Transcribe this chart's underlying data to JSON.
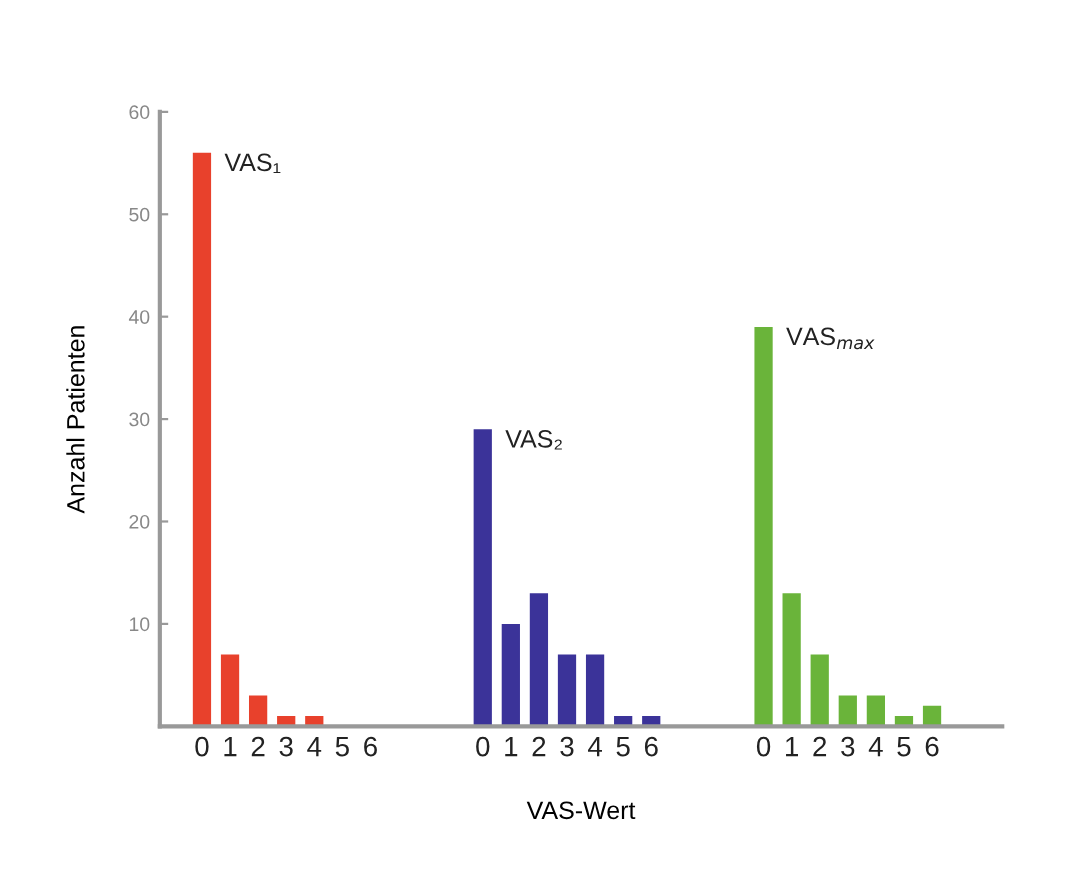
{
  "chart_data": {
    "type": "bar",
    "xlabel": "VAS-Wert",
    "ylabel": "Anzahl Patienten",
    "categories": [
      "0",
      "1",
      "2",
      "3",
      "4",
      "5",
      "6",
      null,
      null,
      null,
      "0",
      "1",
      "2",
      "3",
      "4",
      "5",
      "6",
      null,
      null,
      null,
      "0",
      "1",
      "2",
      "3",
      "4",
      "5",
      "6"
    ],
    "series": [
      {
        "name": "VAS₁",
        "color": "#e8412c",
        "values": [
          56,
          7,
          3,
          1,
          1,
          0,
          0,
          null,
          null,
          null,
          null,
          null,
          null,
          null,
          null,
          null,
          null,
          null,
          null,
          null,
          null,
          null,
          null,
          null,
          null,
          null,
          null
        ]
      },
      {
        "name": "VAS₂",
        "color": "#3b3399",
        "values": [
          null,
          null,
          null,
          null,
          null,
          null,
          null,
          null,
          null,
          null,
          29,
          10,
          13,
          7,
          7,
          1,
          1,
          null,
          null,
          null,
          null,
          null,
          null,
          null,
          null,
          null,
          null
        ]
      },
      {
        "name": "VAS$_{max}$",
        "color": "#6ab43a",
        "values": [
          null,
          null,
          null,
          null,
          null,
          null,
          null,
          null,
          null,
          null,
          null,
          null,
          null,
          null,
          null,
          null,
          null,
          null,
          null,
          null,
          39,
          13,
          7,
          3,
          3,
          1,
          2
        ]
      }
    ],
    "ylim": [
      0,
      60
    ],
    "yticks": [
      {
        "value": 0,
        "label": null
      },
      10,
      20,
      30,
      40,
      50,
      60
    ],
    "grid": false,
    "legend": false
  }
}
